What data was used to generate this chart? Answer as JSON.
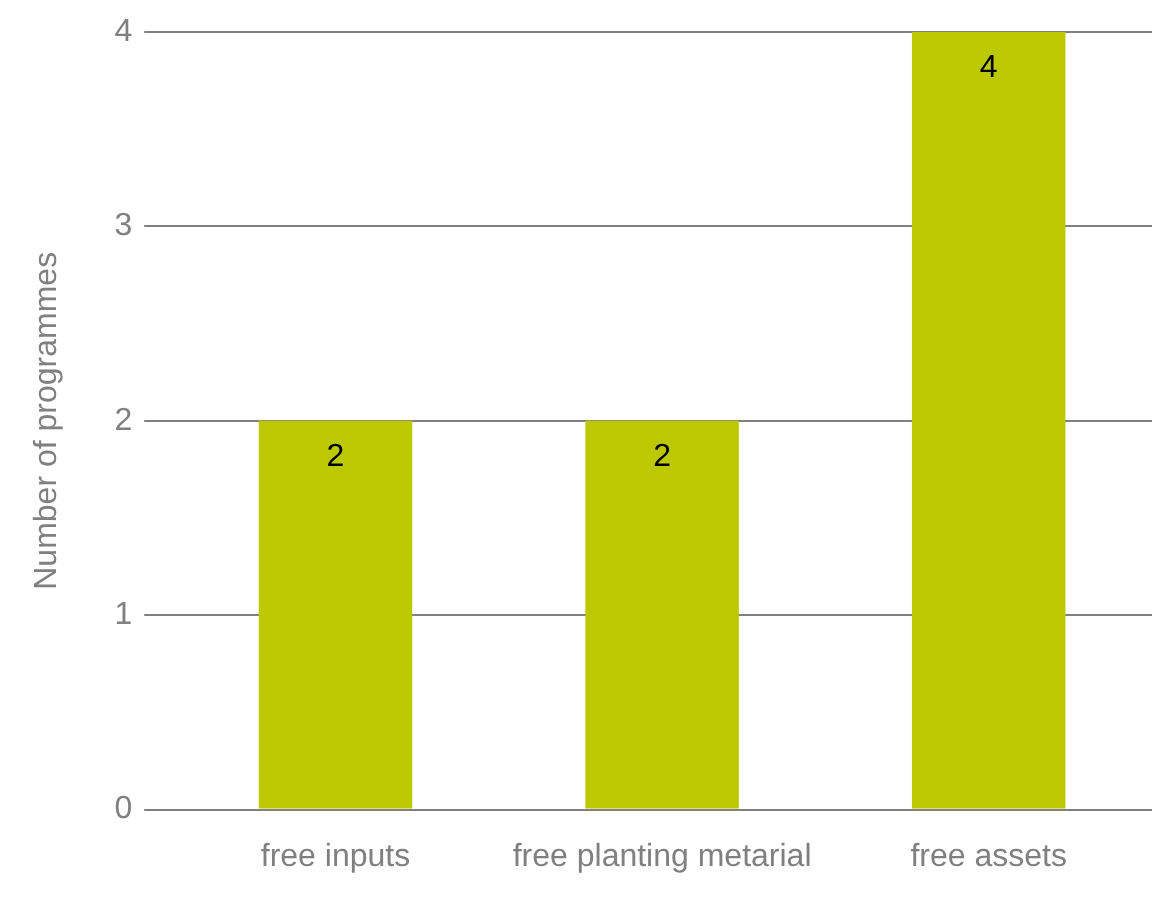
{
  "chart_data": {
    "type": "bar",
    "ylabel": "Number of programmes",
    "categories": [
      "free inputs",
      "free planting metarial",
      "free assets"
    ],
    "values": [
      2,
      2,
      4
    ],
    "color": "#bcc800",
    "ylim": [
      0,
      4
    ],
    "yticks": [
      0,
      1,
      2,
      3,
      4
    ],
    "grid": "y",
    "legend": false,
    "data_labels": true
  }
}
